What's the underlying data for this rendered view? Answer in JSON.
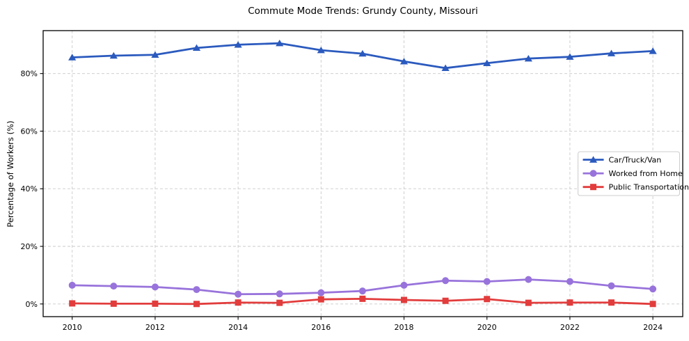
{
  "chart_data": {
    "type": "line",
    "title": "Commute Mode Trends: Grundy County, Missouri",
    "xlabel": "",
    "ylabel": "Percentage of Workers (%)",
    "x": [
      2010,
      2011,
      2012,
      2013,
      2014,
      2015,
      2016,
      2017,
      2018,
      2019,
      2020,
      2021,
      2022,
      2023,
      2024
    ],
    "series": [
      {
        "name": "Car/Truck/Van",
        "marker": "triangle",
        "color": "#2b5abe",
        "values": [
          85.6,
          86.2,
          86.5,
          88.9,
          90.0,
          90.5,
          88.1,
          86.9,
          84.2,
          81.9,
          83.6,
          85.2,
          85.8,
          87.0,
          87.8
        ]
      },
      {
        "name": "Worked from Home",
        "marker": "circle",
        "color": "#9873db",
        "values": [
          6.5,
          6.2,
          5.9,
          5.0,
          3.4,
          3.5,
          3.9,
          4.5,
          6.5,
          8.1,
          7.8,
          8.5,
          7.8,
          6.3,
          5.2
        ]
      },
      {
        "name": "Public Transportation",
        "marker": "square",
        "color": "#e23c3c",
        "values": [
          0.2,
          0.1,
          0.1,
          0.0,
          0.5,
          0.4,
          1.6,
          1.8,
          1.4,
          1.1,
          1.7,
          0.4,
          0.5,
          0.5,
          0.0
        ]
      }
    ],
    "xticks": {
      "values": [
        2010,
        2012,
        2014,
        2016,
        2018,
        2020,
        2022,
        2024
      ],
      "labels": [
        "2010",
        "2012",
        "2014",
        "2016",
        "2018",
        "2020",
        "2022",
        "2024"
      ]
    },
    "yticks": {
      "values": [
        0,
        20,
        40,
        60,
        80
      ],
      "labels": [
        "0%",
        "20%",
        "40%",
        "60%",
        "80%"
      ]
    },
    "xlim": [
      2009.3,
      2024.72
    ],
    "ylim": [
      -4.4,
      94.9
    ],
    "grid": true,
    "grid_style": "dashed",
    "legend": {
      "position": "center right"
    },
    "colors": {
      "axes": "#000000",
      "grid": "#c9c9c9",
      "legend_border": "#cccccc",
      "background": "#ffffff"
    }
  }
}
